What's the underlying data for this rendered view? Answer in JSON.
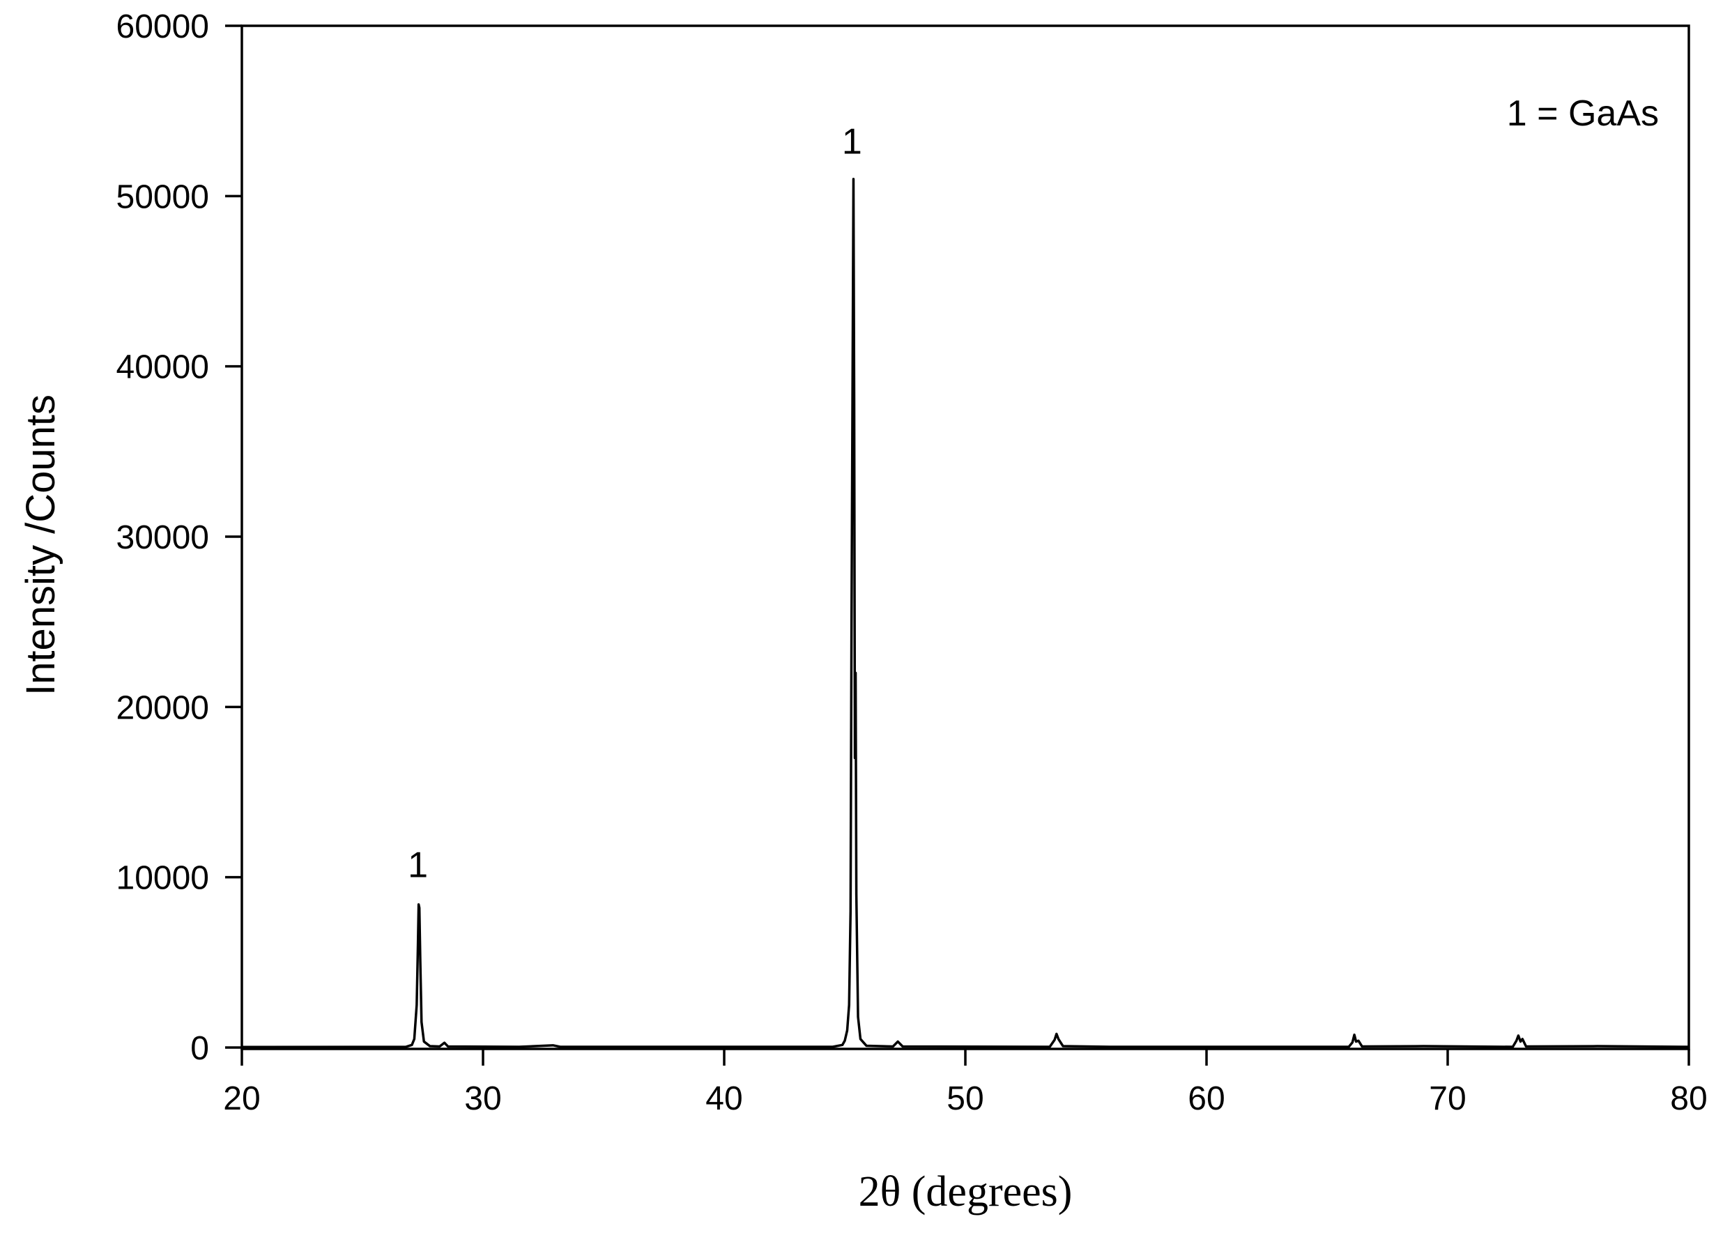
{
  "chart_data": {
    "type": "line",
    "xlabel": "2θ (degrees)",
    "ylabel": "Intensity /Counts",
    "xlim": [
      20,
      80
    ],
    "ylim": [
      0,
      60000
    ],
    "x_ticks": [
      "20",
      "30",
      "40",
      "50",
      "60",
      "70",
      "80"
    ],
    "y_ticks": [
      "0",
      "10000",
      "20000",
      "30000",
      "40000",
      "50000",
      "60000"
    ],
    "grid": false,
    "legend_note": "1 = GaAs",
    "annotations": [
      {
        "text": "1",
        "x": 27.3,
        "y": 10000
      },
      {
        "text": "1",
        "x": 45.3,
        "y": 52500
      }
    ],
    "series": [
      {
        "color": "#000000",
        "points": [
          [
            20.0,
            30
          ],
          [
            26.8,
            40
          ],
          [
            27.05,
            150
          ],
          [
            27.15,
            500
          ],
          [
            27.25,
            2500
          ],
          [
            27.3,
            6000
          ],
          [
            27.33,
            8400
          ],
          [
            27.36,
            8200
          ],
          [
            27.4,
            5000
          ],
          [
            27.45,
            1500
          ],
          [
            27.55,
            350
          ],
          [
            27.8,
            80
          ],
          [
            28.2,
            60
          ],
          [
            28.4,
            280
          ],
          [
            28.55,
            60
          ],
          [
            31.5,
            40
          ],
          [
            32.9,
            130
          ],
          [
            33.2,
            40
          ],
          [
            44.5,
            40
          ],
          [
            44.9,
            150
          ],
          [
            45.0,
            400
          ],
          [
            45.1,
            1000
          ],
          [
            45.18,
            2500
          ],
          [
            45.24,
            8000
          ],
          [
            45.28,
            25000
          ],
          [
            45.32,
            38000
          ],
          [
            45.36,
            51000
          ],
          [
            45.39,
            38000
          ],
          [
            45.42,
            17000
          ],
          [
            45.45,
            22000
          ],
          [
            45.48,
            9000
          ],
          [
            45.55,
            1800
          ],
          [
            45.65,
            500
          ],
          [
            45.9,
            100
          ],
          [
            47.0,
            60
          ],
          [
            47.2,
            350
          ],
          [
            47.4,
            60
          ],
          [
            53.5,
            40
          ],
          [
            53.7,
            450
          ],
          [
            53.78,
            800
          ],
          [
            53.86,
            500
          ],
          [
            54.05,
            80
          ],
          [
            56.0,
            40
          ],
          [
            65.9,
            40
          ],
          [
            66.05,
            300
          ],
          [
            66.13,
            750
          ],
          [
            66.2,
            350
          ],
          [
            66.3,
            400
          ],
          [
            66.45,
            60
          ],
          [
            69.0,
            80
          ],
          [
            72.7,
            40
          ],
          [
            72.85,
            400
          ],
          [
            72.93,
            700
          ],
          [
            73.02,
            350
          ],
          [
            73.1,
            500
          ],
          [
            73.25,
            60
          ],
          [
            76.2,
            80
          ],
          [
            80.0,
            40
          ]
        ]
      }
    ]
  }
}
